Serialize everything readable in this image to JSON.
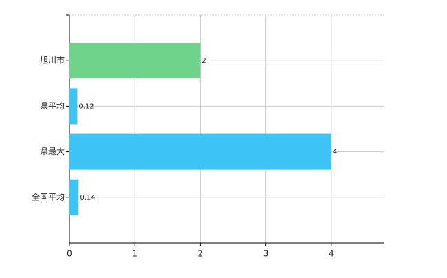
{
  "chart_data": {
    "type": "barh",
    "categories": [
      "旭川市",
      "県平均",
      "県最大",
      "全国平均"
    ],
    "values": [
      2,
      0.12,
      4,
      0.14
    ],
    "colors": [
      "#6fd38b",
      "#3ec3f5",
      "#3ec3f5",
      "#3ec3f5"
    ],
    "xlim": [
      0,
      4.8
    ],
    "xticks": [
      0,
      1,
      2,
      3,
      4
    ],
    "grid": true,
    "data_labels": true
  }
}
